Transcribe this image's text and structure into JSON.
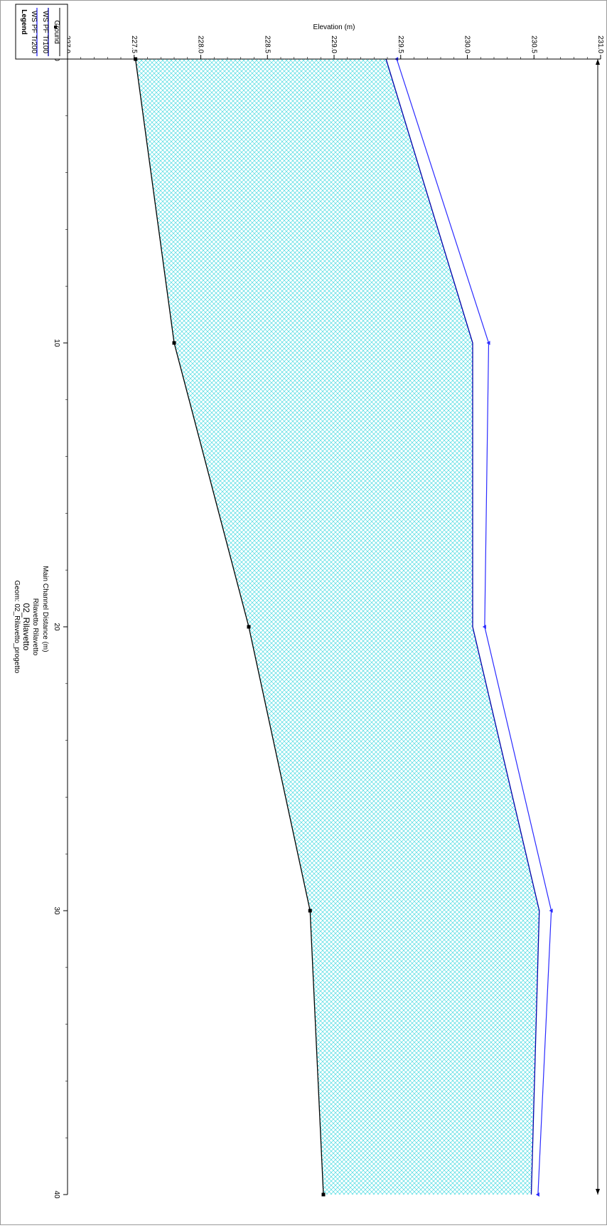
{
  "colors": {
    "tr200": "#2a2aff",
    "tr100": "#0000aa",
    "ground": "#000000",
    "water_fill": "#5fe3e8",
    "axis": "#000000"
  },
  "chart_data": {
    "type": "line",
    "title": "02_Rilavetto",
    "subtitle": "Geom: 02_Rilavetto_progetto",
    "reach_label": "Rilavetto Rilavetto",
    "xlabel": "Main Channel Distance (m)",
    "ylabel": "Elevation (m)",
    "xlim": [
      0,
      40
    ],
    "ylim": [
      227.0,
      231.0
    ],
    "x_ticks": [
      "0",
      "10",
      "20",
      "30",
      "40"
    ],
    "y_ticks": [
      "227.0",
      "227.5",
      "228.0",
      "228.5",
      "229.0",
      "229.5",
      "230.0",
      "230.5",
      "231.0"
    ],
    "legend_title": "Legend",
    "legend_position": "top-right",
    "series": [
      {
        "name": "WS PF Tr200",
        "x": [
          0,
          10,
          20,
          30,
          40
        ],
        "y": [
          229.47,
          230.16,
          230.13,
          230.63,
          230.53
        ]
      },
      {
        "name": "WS PF Tr100",
        "x": [
          0,
          10,
          20,
          30,
          40
        ],
        "y": [
          229.39,
          230.04,
          230.04,
          230.54,
          230.48
        ]
      },
      {
        "name": "Ground",
        "x": [
          0,
          10,
          20,
          30,
          40
        ],
        "y": [
          227.51,
          227.8,
          228.36,
          228.82,
          228.92
        ]
      }
    ]
  }
}
